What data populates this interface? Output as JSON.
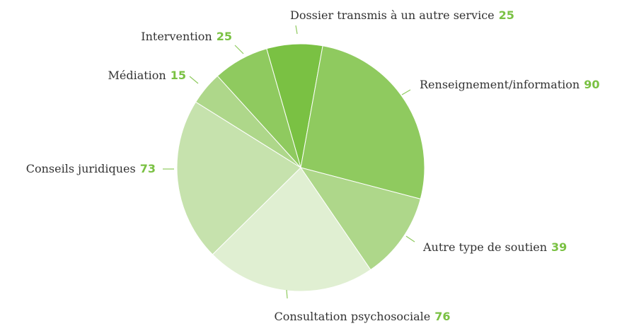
{
  "chart_data": {
    "type": "pie",
    "categories": [
      "Dossier transmis à un autre service",
      "Renseignement/information",
      "Autre type de soutien",
      "Consultation psychosociale",
      "Conseils juridiques",
      "Médiation",
      "Intervention"
    ],
    "values": [
      25,
      90,
      39,
      76,
      73,
      15,
      25
    ],
    "colors": [
      "#7ac143",
      "#8fca5f",
      "#aed78a",
      "#e0efd2",
      "#c6e2ad",
      "#aed78a",
      "#8fca5f"
    ]
  }
}
